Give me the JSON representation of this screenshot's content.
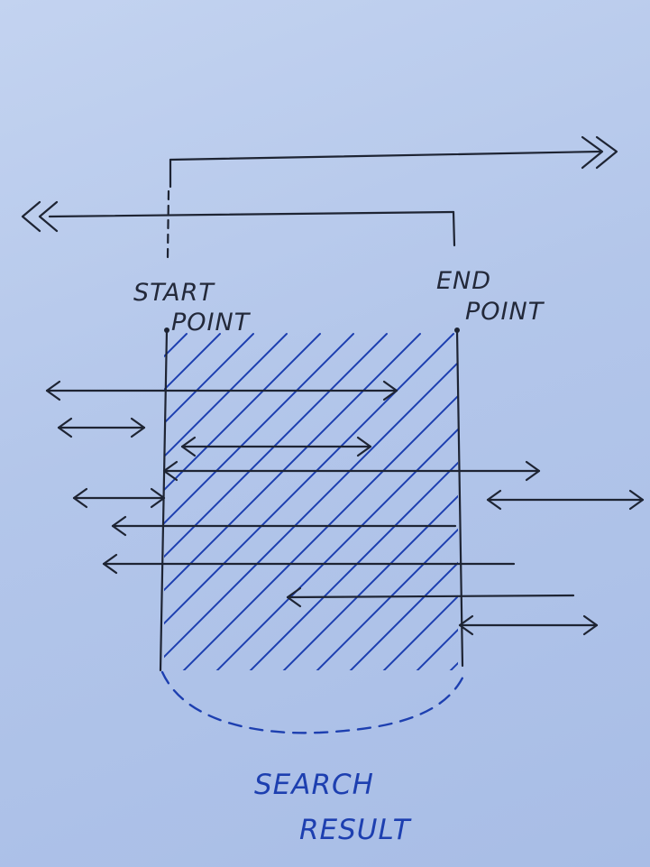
{
  "labels": {
    "start_line1": "START",
    "start_line2": "POINT",
    "end_line1": "END",
    "end_line2": "POINT",
    "result_line1": "SEARCH",
    "result_line2": "RESULT"
  },
  "colors": {
    "ink": "#1e2433",
    "hatch_blue": "#1d3fb0",
    "paper": "#b3c6ea"
  }
}
